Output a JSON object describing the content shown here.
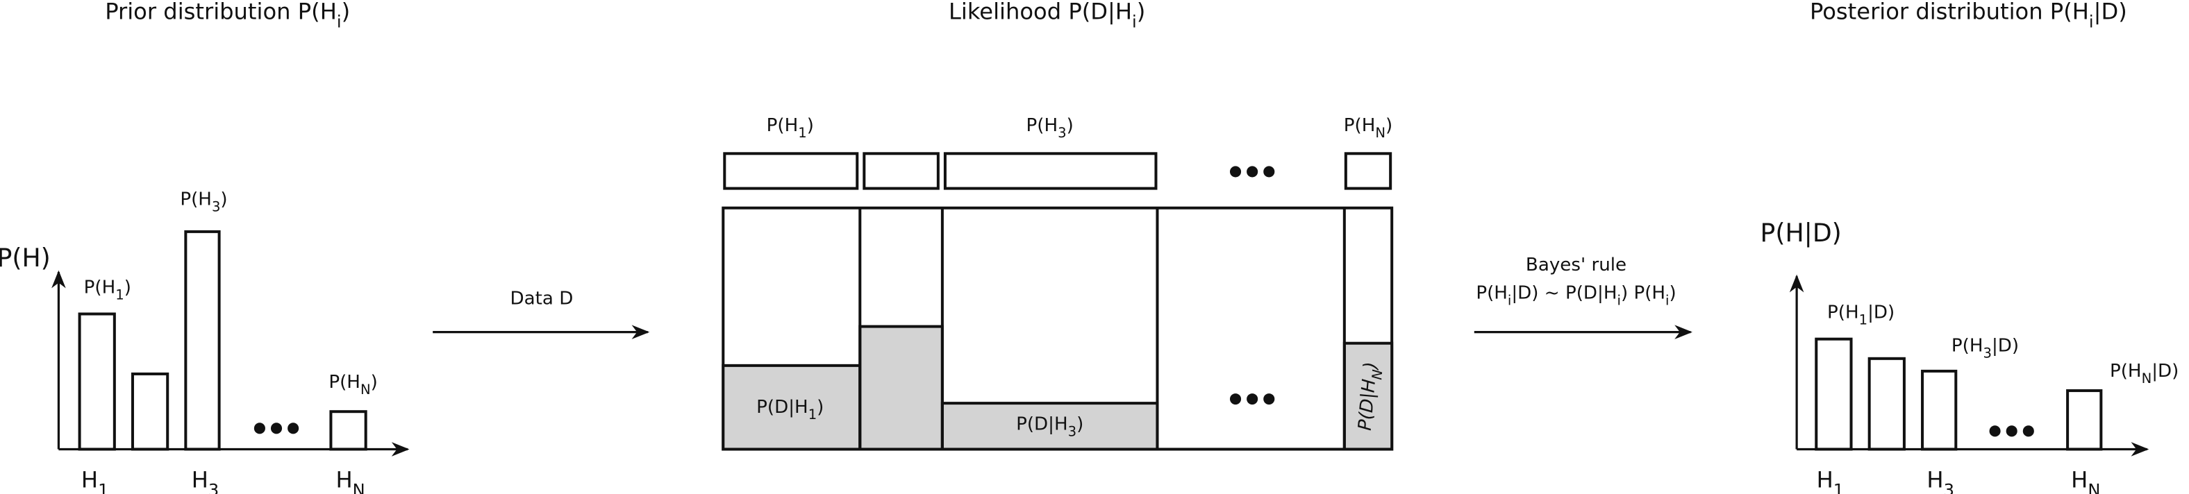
{
  "prior": {
    "title": [
      "Prior distribution P(H",
      "i",
      ")"
    ],
    "axis_label": [
      "P(H)"
    ],
    "bar_labels": [
      [
        "P(H",
        "1",
        ")"
      ],
      [
        "P(H",
        "3",
        ")"
      ],
      [
        "P(H",
        "N",
        ")"
      ]
    ],
    "x_labels": [
      [
        "H",
        "1"
      ],
      [
        "H",
        "3"
      ],
      [
        "H",
        "N"
      ]
    ]
  },
  "data_arrow": {
    "label": [
      "Data D"
    ]
  },
  "likelihood": {
    "title": [
      "Likelihood P(D|H",
      "i",
      ")"
    ],
    "column_labels": [
      [
        "P(H",
        "1",
        ")"
      ],
      [
        "P(H",
        "3",
        ")"
      ],
      [
        "P(H",
        "N",
        ")"
      ]
    ],
    "likelihood_labels": [
      [
        "P(D|H",
        "1",
        ")"
      ],
      [
        "P(D|H",
        "3",
        ")"
      ],
      [
        "P(D|H",
        "N",
        ")"
      ]
    ]
  },
  "bayes_arrow": {
    "label_1": [
      "Bayes' rule"
    ],
    "label_2": [
      "P(H",
      "i",
      "|D) ~ P(D|H",
      "i",
      ") P(H",
      "i",
      ")"
    ]
  },
  "posterior": {
    "title": [
      "Posterior distribution P(H",
      "i",
      "|D)"
    ],
    "axis_label": [
      "P(H|D)"
    ],
    "bar_labels": [
      [
        "P(H",
        "1",
        "|D)"
      ],
      [
        "P(H",
        "3",
        "|D)"
      ],
      [
        "P(H",
        "N",
        "|D)"
      ]
    ],
    "x_labels": [
      [
        "H",
        "1"
      ],
      [
        "H",
        "3"
      ],
      [
        "H",
        "N"
      ]
    ]
  }
}
